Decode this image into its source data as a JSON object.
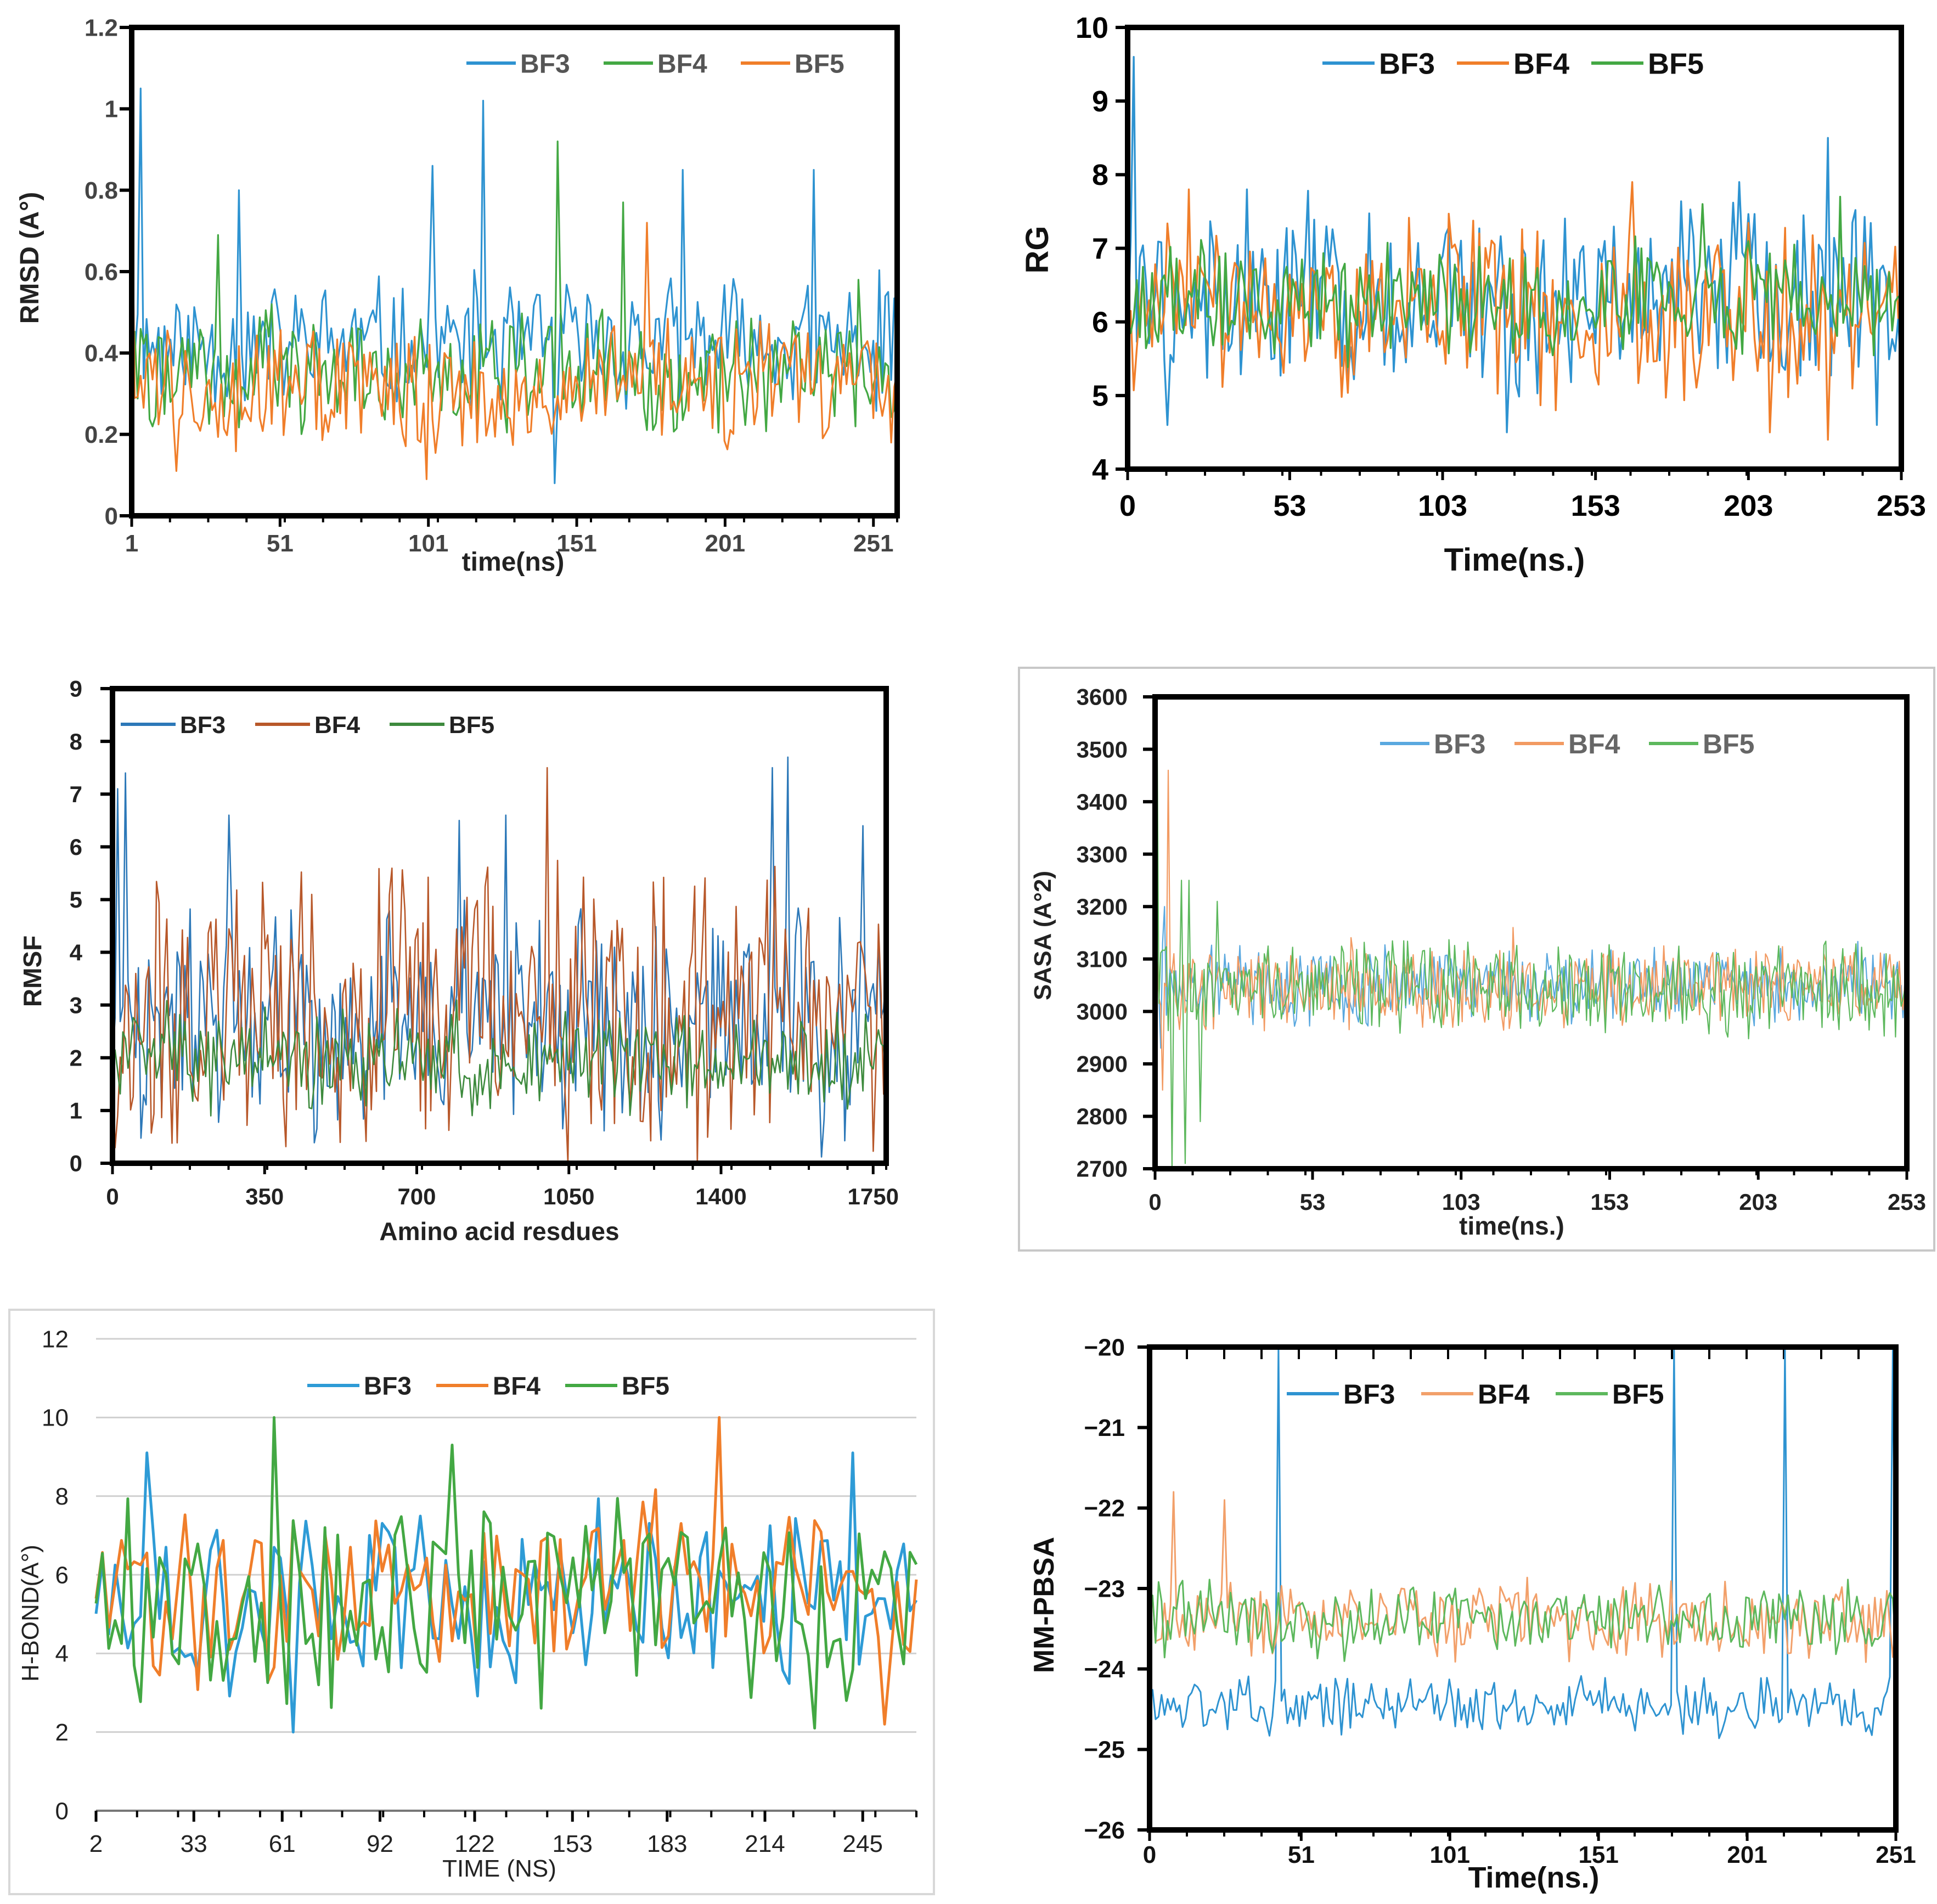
{
  "chart_data": [
    {
      "id": "rmsd",
      "type": "line",
      "title": "",
      "xlabel": "time(ns)",
      "ylabel": "RMSD (A°)",
      "xlim": [
        1,
        259
      ],
      "ylim": [
        0,
        1.2
      ],
      "xticks": [
        1,
        51,
        101,
        151,
        201,
        251
      ],
      "yticks": [
        0,
        0.2,
        0.4,
        0.6,
        0.8,
        1,
        1.2
      ],
      "ytick_labels": [
        "0",
        "0.2",
        "0.4",
        "0.6",
        "0.8",
        "1",
        "1.2"
      ],
      "legend_position": "top-right",
      "series": [
        {
          "name": "BF3",
          "color": "#2e93d1",
          "gen": {
            "mean": 0.42,
            "amp": 0.1,
            "n": 258,
            "seed": 11,
            "spikes": [
              [
                0.62,
                0
              ],
              [
                1.05,
                3
              ],
              [
                0.8,
                36
              ],
              [
                0.86,
                101
              ],
              [
                1.02,
                118
              ],
              [
                0.08,
                142
              ],
              [
                0.85,
                185
              ],
              [
                0.85,
                229
              ],
              [
                0.55,
                254
              ]
            ]
          }
        },
        {
          "name": "BF4",
          "color": "#43a843",
          "gen": {
            "mean": 0.36,
            "amp": 0.09,
            "n": 258,
            "seed": 22,
            "spikes": [
              [
                0.69,
                29
              ],
              [
                0.92,
                143
              ],
              [
                0.77,
                165
              ],
              [
                0.58,
                244
              ]
            ]
          }
        },
        {
          "name": "BF5",
          "color": "#f07e2a",
          "gen": {
            "mean": 0.32,
            "amp": 0.1,
            "n": 258,
            "seed": 33,
            "spikes": [
              [
                0.92,
                0
              ],
              [
                0.11,
                15
              ],
              [
                0.09,
                99
              ],
              [
                0.72,
                173
              ],
              [
                0.18,
                255
              ]
            ]
          }
        }
      ]
    },
    {
      "id": "rg",
      "type": "line",
      "title": "",
      "xlabel": "Time(ns.)",
      "ylabel": "RG",
      "xlim": [
        0,
        253
      ],
      "ylim": [
        4,
        10
      ],
      "xticks": [
        0,
        53,
        103,
        153,
        203,
        253
      ],
      "yticks": [
        4,
        5,
        6,
        7,
        8,
        9,
        10
      ],
      "legend_position": "top-center",
      "series": [
        {
          "name": "BF3",
          "color": "#2e93d1",
          "gen": {
            "mean": 6.3,
            "amp": 0.8,
            "n": 254,
            "seed": 44,
            "spikes": [
              [
                9.6,
                2
              ],
              [
                4.6,
                13
              ],
              [
                7.8,
                39
              ],
              [
                4.5,
                124
              ],
              [
                7.9,
                200
              ],
              [
                8.5,
                229
              ],
              [
                4.6,
                245
              ]
            ]
          }
        },
        {
          "name": "BF4",
          "color": "#f07e2a",
          "gen": {
            "mean": 6.2,
            "amp": 0.75,
            "n": 254,
            "seed": 55,
            "spikes": [
              [
                7.8,
                20
              ],
              [
                7.9,
                165
              ],
              [
                4.5,
                210
              ],
              [
                4.4,
                229
              ],
              [
                4.8,
                140
              ]
            ]
          }
        },
        {
          "name": "BF5",
          "color": "#43a843",
          "gen": {
            "mean": 6.3,
            "amp": 0.5,
            "n": 254,
            "seed": 66,
            "spikes": [
              [
                7.6,
                188
              ],
              [
                7.7,
                233
              ]
            ]
          }
        }
      ]
    },
    {
      "id": "rmsf",
      "type": "line",
      "title": "",
      "xlabel": "Amino acid resdues",
      "ylabel": "RMSF",
      "xlim": [
        0,
        1780
      ],
      "ylim": [
        0,
        9
      ],
      "xticks": [
        0,
        350,
        700,
        1050,
        1400,
        1750
      ],
      "yticks": [
        0,
        1,
        2,
        3,
        4,
        5,
        6,
        7,
        8,
        9
      ],
      "legend_position": "top-left",
      "series": [
        {
          "name": "BF3",
          "color": "#2c78b8",
          "gen": {
            "mean": 2.6,
            "amp": 1.3,
            "n": 300,
            "seed": 77,
            "spikes": [
              [
                7.1,
                2
              ],
              [
                7.4,
                5
              ],
              [
                6.6,
                45
              ],
              [
                6.5,
                134
              ],
              [
                6.6,
                152
              ],
              [
                7.5,
                255
              ],
              [
                7.7,
                261
              ],
              [
                6.4,
                290
              ]
            ]
          }
        },
        {
          "name": "BF4",
          "color": "#b8582a",
          "gen": {
            "mean": 2.8,
            "amp": 1.6,
            "n": 300,
            "seed": 88,
            "spikes": [
              [
                7.5,
                168
              ]
            ]
          }
        },
        {
          "name": "BF5",
          "color": "#3d8a3d",
          "gen": {
            "mean": 2.0,
            "amp": 0.6,
            "n": 300,
            "seed": 99,
            "spikes": []
          }
        }
      ]
    },
    {
      "id": "sasa",
      "type": "line",
      "title": "",
      "xlabel": "time(ns.)",
      "ylabel": "SASA (A°2)",
      "xlim": [
        0,
        253
      ],
      "ylim": [
        2700,
        3600
      ],
      "xticks": [
        0,
        53,
        103,
        153,
        203,
        253
      ],
      "yticks": [
        2700,
        2800,
        2900,
        3000,
        3100,
        3200,
        3300,
        3400,
        3500,
        3600
      ],
      "legend_position": "top-center",
      "series": [
        {
          "name": "BF3",
          "color": "#5aa8df",
          "gen": {
            "mean": 3050,
            "amp": 45,
            "n": 400,
            "seed": 111,
            "spikes": [
              [
                3400,
                0
              ],
              [
                2930,
                3
              ],
              [
                3200,
                5
              ]
            ]
          }
        },
        {
          "name": "BF4",
          "color": "#f29a62",
          "gen": {
            "mean": 3050,
            "amp": 50,
            "n": 400,
            "seed": 222,
            "spikes": [
              [
                3460,
                7
              ],
              [
                2850,
                4
              ],
              [
                3160,
                190
              ]
            ]
          }
        },
        {
          "name": "BF5",
          "color": "#5db85d",
          "gen": {
            "mean": 3045,
            "amp": 55,
            "n": 400,
            "seed": 333,
            "spikes": [
              [
                3600,
                1
              ],
              [
                2700,
                9
              ],
              [
                3250,
                14
              ],
              [
                2710,
                16
              ],
              [
                3250,
                18
              ],
              [
                2790,
                24
              ],
              [
                3210,
                33
              ]
            ]
          }
        }
      ]
    },
    {
      "id": "hbond",
      "type": "line",
      "title": "",
      "xlabel": "TIME (NS)",
      "ylabel": "H-BOND(A°)",
      "xlim": [
        2,
        262
      ],
      "ylim": [
        0,
        12
      ],
      "xticks": [
        2,
        33,
        61,
        92,
        122,
        153,
        183,
        214,
        245
      ],
      "yticks": [
        0,
        2,
        4,
        6,
        8,
        10,
        12
      ],
      "grid": true,
      "legend_position": "top-center",
      "series": [
        {
          "name": "BF3",
          "color": "#2e9bd6",
          "gen": {
            "mean": 5.4,
            "amp": 1.5,
            "n": 130,
            "seed": 444,
            "spikes": [
              [
                9.1,
                8
              ],
              [
                2.0,
                31
              ],
              [
                9.1,
                119
              ]
            ]
          }
        },
        {
          "name": "BF4",
          "color": "#f07e2a",
          "gen": {
            "mean": 5.6,
            "amp": 1.4,
            "n": 130,
            "seed": 555,
            "spikes": [
              [
                10.0,
                98
              ],
              [
                2.2,
                124
              ]
            ]
          }
        },
        {
          "name": "BF5",
          "color": "#43a843",
          "gen": {
            "mean": 5.3,
            "amp": 1.6,
            "n": 130,
            "seed": 666,
            "spikes": [
              [
                10.0,
                28
              ],
              [
                9.3,
                56
              ],
              [
                2.1,
                113
              ]
            ]
          }
        }
      ]
    },
    {
      "id": "mmpbsa",
      "type": "line",
      "title": "",
      "xlabel": "Time(ns.)",
      "ylabel": "MM-PBSA",
      "xlim": [
        0,
        251
      ],
      "ylim": [
        -26,
        -20
      ],
      "xticks": [
        0,
        51,
        101,
        151,
        201,
        251
      ],
      "yticks": [
        -26,
        -25,
        -24,
        -23,
        -22,
        -21,
        -20
      ],
      "ytick_labels": [
        "−26",
        "−25",
        "−24",
        "−23",
        "−22",
        "−21",
        "−20"
      ],
      "legend_position": "top-left",
      "series": [
        {
          "name": "BF3",
          "color": "#2e93d1",
          "gen": {
            "mean": -24.45,
            "amp": 0.22,
            "n": 250,
            "seed": 777,
            "spikes": [
              [
                -20,
                43
              ],
              [
                -20,
                175
              ],
              [
                -20,
                212
              ],
              [
                -20,
                248
              ]
            ]
          }
        },
        {
          "name": "BF4",
          "color": "#f2a06a",
          "gen": {
            "mean": -23.4,
            "amp": 0.3,
            "n": 250,
            "seed": 888,
            "spikes": [
              [
                -21.8,
                8
              ],
              [
                -21.9,
                25
              ]
            ]
          }
        },
        {
          "name": "BF5",
          "color": "#5db85d",
          "gen": {
            "mean": -23.4,
            "amp": 0.3,
            "n": 250,
            "seed": 999,
            "spikes": []
          }
        }
      ]
    }
  ]
}
